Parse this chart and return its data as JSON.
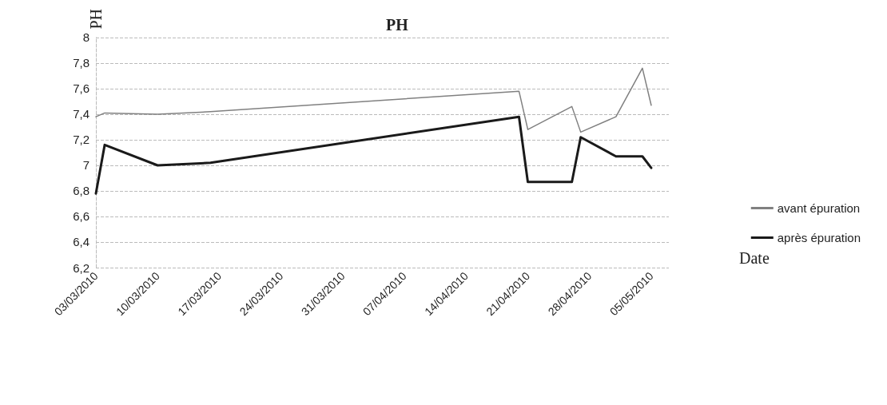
{
  "chart_data": {
    "type": "line",
    "title": "PH",
    "xlabel": "Date",
    "ylabel": "PH",
    "xlim": [
      "2010-03-03",
      "2010-05-07"
    ],
    "xticks": [
      {
        "value": "2010-03-03",
        "label": "03/03/2010"
      },
      {
        "value": "2010-03-10",
        "label": "10/03/2010"
      },
      {
        "value": "2010-03-17",
        "label": "17/03/2010"
      },
      {
        "value": "2010-03-24",
        "label": "24/03/2010"
      },
      {
        "value": "2010-03-31",
        "label": "31/03/2010"
      },
      {
        "value": "2010-04-07",
        "label": "07/04/2010"
      },
      {
        "value": "2010-04-14",
        "label": "14/04/2010"
      },
      {
        "value": "2010-04-21",
        "label": "21/04/2010"
      },
      {
        "value": "2010-04-28",
        "label": "28/04/2010"
      },
      {
        "value": "2010-05-05",
        "label": "05/05/2010"
      }
    ],
    "ylim": [
      6.2,
      8
    ],
    "yticks": [
      {
        "value": 6.2,
        "label": "6,2"
      },
      {
        "value": 6.4,
        "label": "6,4"
      },
      {
        "value": 6.6,
        "label": "6,6"
      },
      {
        "value": 6.8,
        "label": "6,8"
      },
      7,
      {
        "value": 7.2,
        "label": "7,2"
      },
      {
        "value": 7.4,
        "label": "7,4"
      },
      {
        "value": 7.6,
        "label": "7,6"
      },
      {
        "value": 7.8,
        "label": "7,8"
      },
      8
    ],
    "x": [
      "2010-03-03",
      "2010-03-04",
      "2010-03-10",
      "2010-03-16",
      "2010-04-20",
      "2010-04-21",
      "2010-04-26",
      "2010-04-27",
      "2010-05-01",
      "2010-05-04",
      "2010-05-05"
    ],
    "series": [
      {
        "name": "avant épuration",
        "color": "#808080",
        "values": [
          7.38,
          7.41,
          7.4,
          7.42,
          7.58,
          7.28,
          7.46,
          7.26,
          7.38,
          7.76,
          7.47
        ]
      },
      {
        "name": "après épuration",
        "color": "#1a1a1a",
        "values": [
          6.78,
          7.16,
          7.0,
          7.02,
          7.38,
          6.87,
          6.87,
          7.22,
          7.07,
          7.07,
          6.98
        ]
      }
    ],
    "grid": "y",
    "legend": "right",
    "marker": "none",
    "line_style": "solid"
  }
}
